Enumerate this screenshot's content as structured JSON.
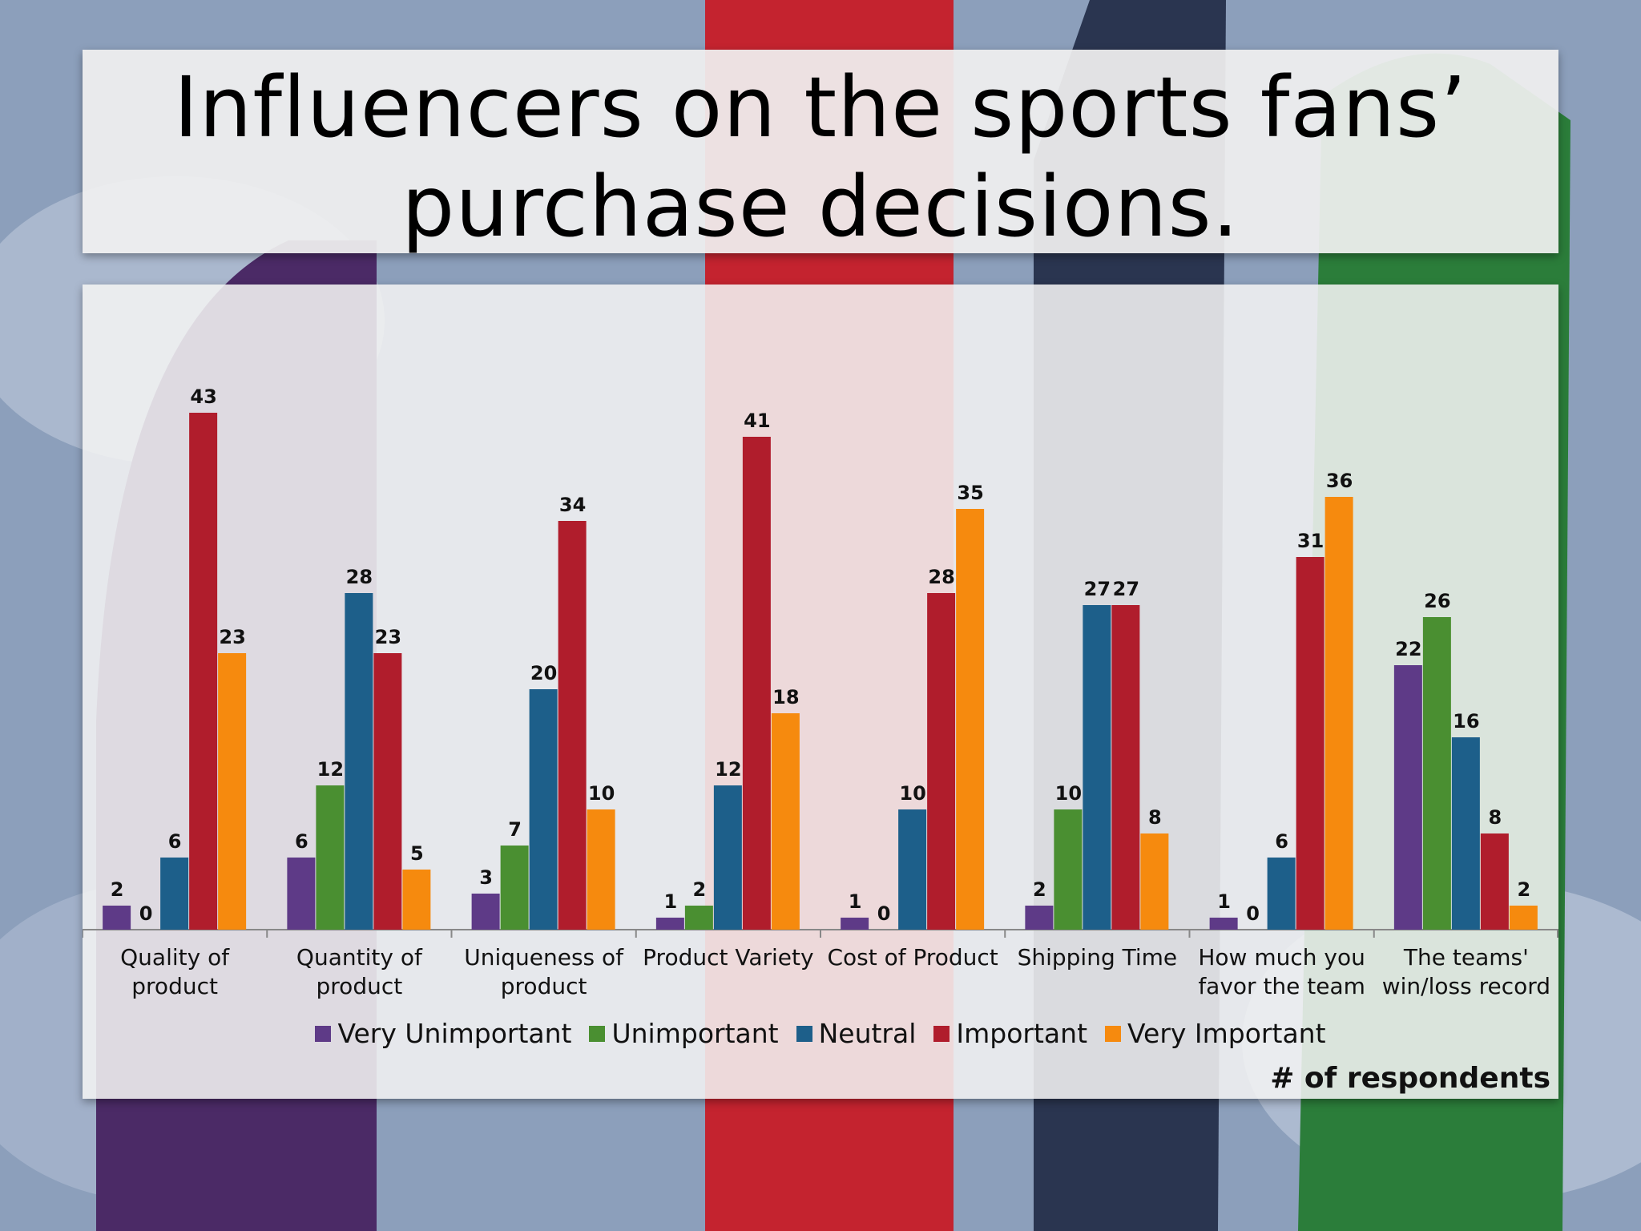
{
  "slide": {
    "title_line1": "Influencers on the sports fans’",
    "title_line2": "purchase decisions.",
    "note": "# of respondents"
  },
  "chart_data": {
    "type": "bar",
    "title": "",
    "xlabel": "",
    "ylabel": "",
    "ylim": [
      0,
      45
    ],
    "grid": false,
    "legend_position": "bottom",
    "categories": [
      [
        "Quality of",
        "product"
      ],
      [
        "Quantity of",
        "product"
      ],
      [
        "Uniqueness of",
        "product"
      ],
      [
        "Product Variety"
      ],
      [
        "Cost of Product"
      ],
      [
        "Shipping Time"
      ],
      [
        "How much you",
        "favor the team"
      ],
      [
        "The teams'",
        "win/loss record"
      ]
    ],
    "series": [
      {
        "name": "Very Unimportant",
        "color": "#5e3a87",
        "values": [
          2,
          6,
          3,
          1,
          1,
          2,
          1,
          22
        ]
      },
      {
        "name": "Unimportant",
        "color": "#4a8f31",
        "values": [
          0,
          12,
          7,
          2,
          0,
          10,
          0,
          26
        ]
      },
      {
        "name": "Neutral",
        "color": "#1d5f8a",
        "values": [
          6,
          28,
          20,
          12,
          10,
          27,
          6,
          16
        ]
      },
      {
        "name": "Important",
        "color": "#b01d2c",
        "values": [
          43,
          23,
          34,
          41,
          28,
          27,
          31,
          8
        ]
      },
      {
        "name": "Very Important",
        "color": "#f68a0e",
        "values": [
          23,
          5,
          10,
          18,
          35,
          8,
          36,
          2
        ]
      }
    ]
  }
}
